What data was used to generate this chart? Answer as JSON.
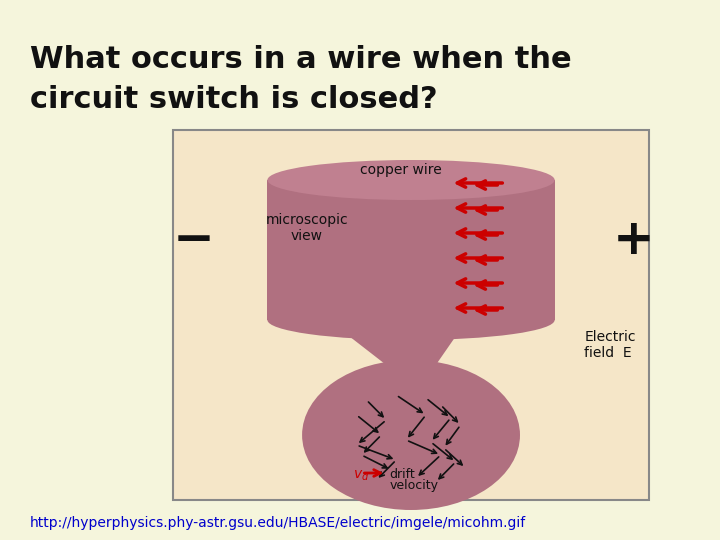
{
  "bg_color": "#f5f5dc",
  "title_line1": "What occurs in a wire when the",
  "title_line2": "circuit switch is closed?",
  "title_fontsize": 22,
  "title_color": "#111111",
  "url_text": "http://hyperphysics.phy-astr.gsu.edu/HBASE/electric/imgele/micohm.gif",
  "url_color": "#0000cc",
  "url_fontsize": 10,
  "box_color": "#f5e6c8",
  "box_edge_color": "#888888",
  "wire_color": "#b07080",
  "wire_ellipse_color": "#c08090",
  "bulge_color": "#b07080",
  "arrow_color": "#cc0000",
  "minus_color": "#111111",
  "plus_color": "#111111",
  "label_color": "#111111",
  "drift_arrow_color": "#cc0000",
  "electron_path_color": "#111111"
}
